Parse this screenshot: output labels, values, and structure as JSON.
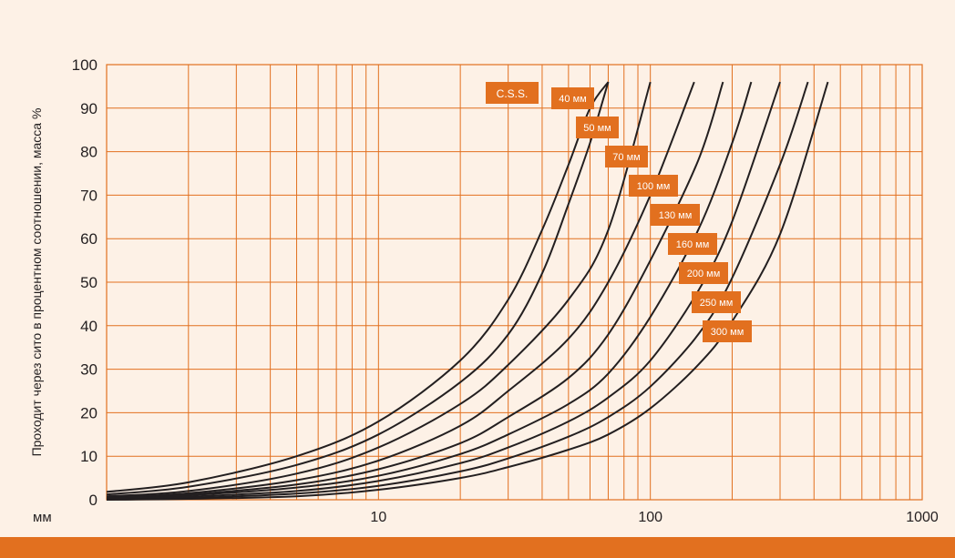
{
  "chart_data": {
    "type": "line",
    "title": "",
    "ylabel": "Проходит через сито в процентном соотношении, масса %",
    "xlabel": "мм",
    "x_scale": "log",
    "xlim": [
      1,
      1000
    ],
    "ylim": [
      0,
      100
    ],
    "x_ticks": [
      10,
      100,
      1000
    ],
    "x_tick_labels": [
      "10",
      "100",
      "1000"
    ],
    "y_ticks": [
      0,
      10,
      20,
      30,
      40,
      50,
      60,
      70,
      80,
      90,
      100
    ],
    "y_tick_labels": [
      "0",
      "10",
      "20",
      "30",
      "40",
      "50",
      "60",
      "70",
      "80",
      "90",
      "100"
    ],
    "grid": true,
    "colors": {
      "background": "#fdf1e6",
      "grid": "#e2701f",
      "axis": "#e2701f",
      "curve": "#231f20",
      "label_box": "#e2701f",
      "label_text": "#ffffff",
      "tick_text": "#231f20"
    },
    "legend_box": "C.S.S.",
    "series": [
      {
        "name": "40 мм",
        "x": [
          1,
          2,
          5,
          10,
          20,
          30,
          40,
          50,
          60,
          70
        ],
        "values": [
          1.8,
          4,
          10,
          18,
          32,
          46,
          62,
          77,
          90,
          96
        ]
      },
      {
        "name": "50 мм",
        "x": [
          1,
          2,
          5,
          10,
          20,
          30,
          40,
          50,
          60,
          70
        ],
        "values": [
          1.2,
          3,
          8,
          15,
          27,
          38,
          52,
          68,
          82,
          96
        ]
      },
      {
        "name": "70 мм",
        "x": [
          1,
          2,
          5,
          10,
          20,
          30,
          50,
          70,
          100
        ],
        "values": [
          0.8,
          2,
          6,
          12,
          22,
          31,
          46,
          62,
          96
        ]
      },
      {
        "name": "100 мм",
        "x": [
          1,
          2,
          5,
          10,
          20,
          30,
          50,
          70,
          100,
          145
        ],
        "values": [
          0.5,
          1.5,
          4.5,
          9,
          17,
          25,
          37,
          50,
          70,
          96
        ]
      },
      {
        "name": "130 мм",
        "x": [
          1,
          2,
          5,
          10,
          20,
          30,
          50,
          70,
          100,
          150,
          185
        ],
        "values": [
          0.3,
          1.2,
          3.5,
          7,
          13,
          19,
          28,
          38,
          55,
          78,
          96
        ]
      },
      {
        "name": "160 мм",
        "x": [
          1,
          2,
          5,
          10,
          20,
          30,
          50,
          70,
          100,
          150,
          200,
          235
        ],
        "values": [
          0.2,
          1,
          2.8,
          5.5,
          10.5,
          15,
          22,
          29,
          42,
          62,
          82,
          96
        ]
      },
      {
        "name": "200 мм",
        "x": [
          1,
          2,
          5,
          10,
          20,
          30,
          50,
          70,
          100,
          150,
          200,
          300
        ],
        "values": [
          0.1,
          0.7,
          2,
          4.3,
          8.4,
          12,
          18,
          23.5,
          32,
          48,
          64,
          96
        ]
      },
      {
        "name": "250 мм",
        "x": [
          1,
          2,
          5,
          10,
          20,
          30,
          50,
          70,
          100,
          150,
          200,
          300,
          380
        ],
        "values": [
          0,
          0.4,
          1.4,
          3.2,
          6.5,
          9.5,
          14.5,
          19,
          26,
          38,
          51,
          77,
          96
        ]
      },
      {
        "name": "300 мм",
        "x": [
          1,
          2,
          5,
          10,
          20,
          30,
          50,
          70,
          100,
          150,
          200,
          300,
          450
        ],
        "values": [
          0,
          0.2,
          0.8,
          2.3,
          5,
          7.5,
          11.5,
          15,
          21,
          31,
          41,
          61,
          96
        ]
      }
    ]
  }
}
